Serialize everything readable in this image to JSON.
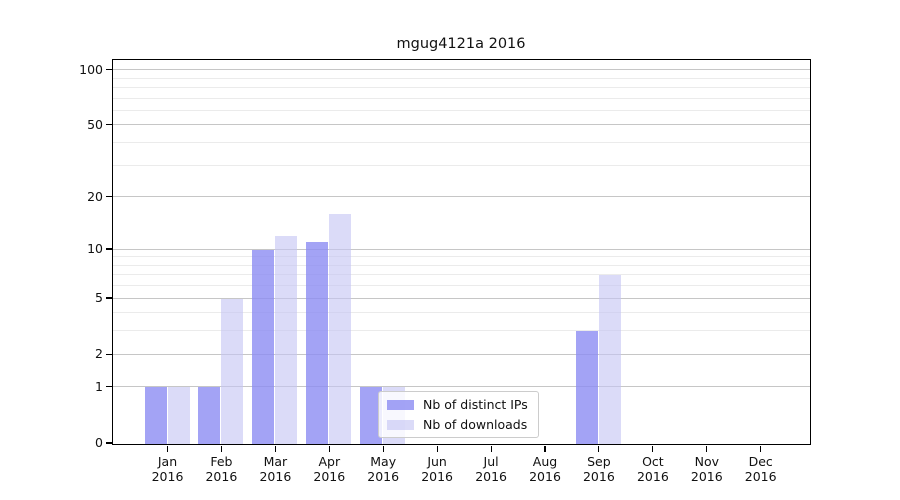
{
  "title": "mgug4121a 2016",
  "legend": {
    "items": [
      {
        "label": "Nb of distinct IPs",
        "color": "rgba(140,140,243,0.8)"
      },
      {
        "label": "Nb of downloads",
        "color": "rgba(197,197,243,0.62)"
      }
    ]
  },
  "axes": {
    "x_tick_labels": [
      {
        "month": "Jan",
        "year": "2016"
      },
      {
        "month": "Feb",
        "year": "2016"
      },
      {
        "month": "Mar",
        "year": "2016"
      },
      {
        "month": "Apr",
        "year": "2016"
      },
      {
        "month": "May",
        "year": "2016"
      },
      {
        "month": "Jun",
        "year": "2016"
      },
      {
        "month": "Jul",
        "year": "2016"
      },
      {
        "month": "Aug",
        "year": "2016"
      },
      {
        "month": "Sep",
        "year": "2016"
      },
      {
        "month": "Oct",
        "year": "2016"
      },
      {
        "month": "Nov",
        "year": "2016"
      },
      {
        "month": "Dec",
        "year": "2016"
      }
    ],
    "y_tick_labels": [
      "100",
      "50",
      "20",
      "10",
      "5",
      "2",
      "1",
      "0"
    ]
  },
  "chart_data": {
    "type": "bar",
    "title": "mgug4121a 2016",
    "categories": [
      "Jan 2016",
      "Feb 2016",
      "Mar 2016",
      "Apr 2016",
      "May 2016",
      "Jun 2016",
      "Jul 2016",
      "Aug 2016",
      "Sep 2016",
      "Oct 2016",
      "Nov 2016",
      "Dec 2016"
    ],
    "series": [
      {
        "name": "Nb of distinct IPs",
        "values": [
          1,
          1,
          10,
          11,
          1,
          0,
          0,
          0,
          3,
          0,
          0,
          0
        ]
      },
      {
        "name": "Nb of downloads",
        "values": [
          1,
          5,
          12,
          16,
          1,
          0,
          0,
          0,
          7,
          0,
          0,
          0
        ]
      }
    ],
    "xlabel": "",
    "ylabel": "",
    "y_scale": "log10(value+1)",
    "y_major_ticks": [
      0,
      1,
      2,
      5,
      10,
      20,
      50,
      100
    ],
    "y_minor_ticks": [
      3,
      4,
      6,
      7,
      8,
      9,
      30,
      40,
      60,
      70,
      80,
      90
    ],
    "ylim": [
      0,
      117
    ],
    "grid": "horizontal",
    "legend_position": "lower center"
  },
  "colors": {
    "bar_ips": "rgba(140,140,243,0.8)",
    "bar_downloads": "rgba(197,197,243,0.62)",
    "grid_major": "#c6c6c6",
    "grid_minor": "#ebebeb",
    "spine": "#000000",
    "legend_border": "#cccccc"
  }
}
